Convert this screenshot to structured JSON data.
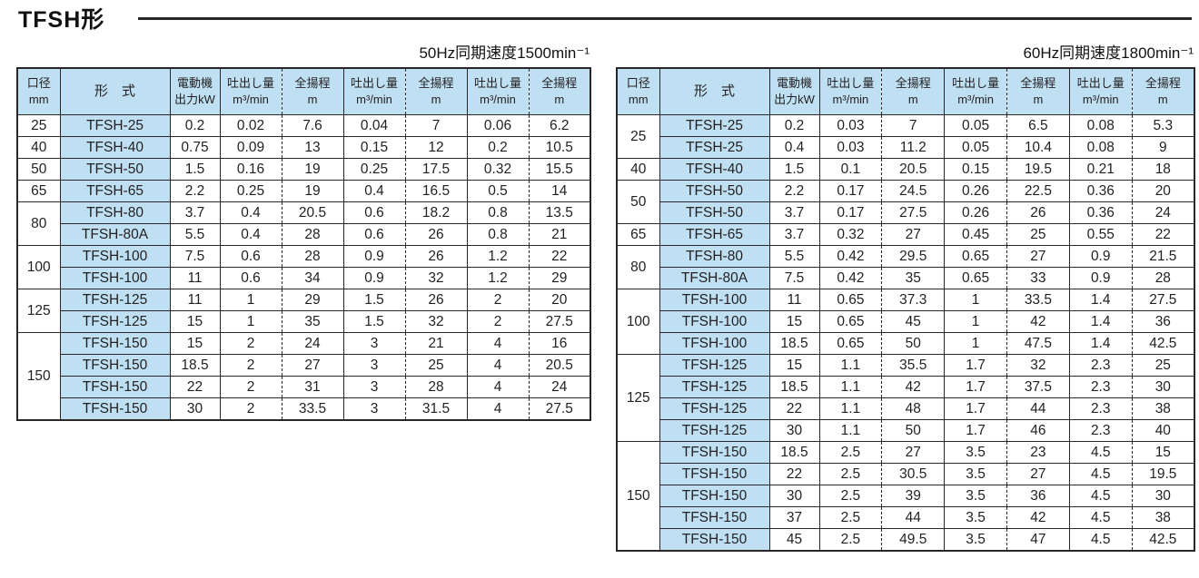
{
  "page": {
    "title": "TFSH形"
  },
  "colors": {
    "header_bg": "#bfdff2",
    "model_cell_bg": "#bfdff2",
    "border": "#2a2627",
    "text": "#231f20"
  },
  "header": {
    "bore": [
      "口径",
      "mm"
    ],
    "model": "形　式",
    "motor": [
      "電動機",
      "出力kW"
    ],
    "flow": [
      "吐出し量",
      "m³/min"
    ],
    "head": [
      "全揚程",
      "m"
    ]
  },
  "tables": [
    {
      "caption": "50Hz同期速度1500min⁻¹",
      "groups": [
        {
          "bore": "25",
          "rows": [
            [
              "TFSH-25",
              "0.2",
              "0.02",
              "7.6",
              "0.04",
              "7",
              "0.06",
              "6.2"
            ]
          ]
        },
        {
          "bore": "40",
          "rows": [
            [
              "TFSH-40",
              "0.75",
              "0.09",
              "13",
              "0.15",
              "12",
              "0.2",
              "10.5"
            ]
          ]
        },
        {
          "bore": "50",
          "rows": [
            [
              "TFSH-50",
              "1.5",
              "0.16",
              "19",
              "0.25",
              "17.5",
              "0.32",
              "15.5"
            ]
          ]
        },
        {
          "bore": "65",
          "rows": [
            [
              "TFSH-65",
              "2.2",
              "0.25",
              "19",
              "0.4",
              "16.5",
              "0.5",
              "14"
            ]
          ]
        },
        {
          "bore": "80",
          "rows": [
            [
              "TFSH-80",
              "3.7",
              "0.4",
              "20.5",
              "0.6",
              "18.2",
              "0.8",
              "13.5"
            ],
            [
              "TFSH-80A",
              "5.5",
              "0.4",
              "28",
              "0.6",
              "26",
              "0.8",
              "21"
            ]
          ]
        },
        {
          "bore": "100",
          "rows": [
            [
              "TFSH-100",
              "7.5",
              "0.6",
              "28",
              "0.9",
              "26",
              "1.2",
              "22"
            ],
            [
              "TFSH-100",
              "11",
              "0.6",
              "34",
              "0.9",
              "32",
              "1.2",
              "29"
            ]
          ]
        },
        {
          "bore": "125",
          "rows": [
            [
              "TFSH-125",
              "11",
              "1",
              "29",
              "1.5",
              "26",
              "2",
              "20"
            ],
            [
              "TFSH-125",
              "15",
              "1",
              "35",
              "1.5",
              "32",
              "2",
              "27.5"
            ]
          ]
        },
        {
          "bore": "150",
          "rows": [
            [
              "TFSH-150",
              "15",
              "2",
              "24",
              "3",
              "21",
              "4",
              "16"
            ],
            [
              "TFSH-150",
              "18.5",
              "2",
              "27",
              "3",
              "25",
              "4",
              "20.5"
            ],
            [
              "TFSH-150",
              "22",
              "2",
              "31",
              "3",
              "28",
              "4",
              "24"
            ],
            [
              "TFSH-150",
              "30",
              "2",
              "33.5",
              "3",
              "31.5",
              "4",
              "27.5"
            ]
          ]
        }
      ]
    },
    {
      "caption": "60Hz同期速度1800min⁻¹",
      "groups": [
        {
          "bore": "25",
          "rows": [
            [
              "TFSH-25",
              "0.2",
              "0.03",
              "7",
              "0.05",
              "6.5",
              "0.08",
              "5.3"
            ],
            [
              "TFSH-25",
              "0.4",
              "0.03",
              "11.2",
              "0.05",
              "10.4",
              "0.08",
              "9"
            ]
          ]
        },
        {
          "bore": "40",
          "rows": [
            [
              "TFSH-40",
              "1.5",
              "0.1",
              "20.5",
              "0.15",
              "19.5",
              "0.21",
              "18"
            ]
          ]
        },
        {
          "bore": "50",
          "rows": [
            [
              "TFSH-50",
              "2.2",
              "0.17",
              "24.5",
              "0.26",
              "22.5",
              "0.36",
              "20"
            ],
            [
              "TFSH-50",
              "3.7",
              "0.17",
              "27.5",
              "0.26",
              "26",
              "0.36",
              "24"
            ]
          ]
        },
        {
          "bore": "65",
          "rows": [
            [
              "TFSH-65",
              "3.7",
              "0.32",
              "27",
              "0.45",
              "25",
              "0.55",
              "22"
            ]
          ]
        },
        {
          "bore": "80",
          "rows": [
            [
              "TFSH-80",
              "5.5",
              "0.42",
              "29.5",
              "0.65",
              "27",
              "0.9",
              "21.5"
            ],
            [
              "TFSH-80A",
              "7.5",
              "0.42",
              "35",
              "0.65",
              "33",
              "0.9",
              "28"
            ]
          ]
        },
        {
          "bore": "100",
          "rows": [
            [
              "TFSH-100",
              "11",
              "0.65",
              "37.3",
              "1",
              "33.5",
              "1.4",
              "27.5"
            ],
            [
              "TFSH-100",
              "15",
              "0.65",
              "45",
              "1",
              "42",
              "1.4",
              "36"
            ],
            [
              "TFSH-100",
              "18.5",
              "0.65",
              "50",
              "1",
              "47.5",
              "1.4",
              "42.5"
            ]
          ]
        },
        {
          "bore": "125",
          "rows": [
            [
              "TFSH-125",
              "15",
              "1.1",
              "35.5",
              "1.7",
              "32",
              "2.3",
              "25"
            ],
            [
              "TFSH-125",
              "18.5",
              "1.1",
              "42",
              "1.7",
              "37.5",
              "2.3",
              "30"
            ],
            [
              "TFSH-125",
              "22",
              "1.1",
              "48",
              "1.7",
              "44",
              "2.3",
              "38"
            ],
            [
              "TFSH-125",
              "30",
              "1.1",
              "50",
              "1.7",
              "46",
              "2.3",
              "40"
            ]
          ]
        },
        {
          "bore": "150",
          "rows": [
            [
              "TFSH-150",
              "18.5",
              "2.5",
              "27",
              "3.5",
              "23",
              "4.5",
              "15"
            ],
            [
              "TFSH-150",
              "22",
              "2.5",
              "30.5",
              "3.5",
              "27",
              "4.5",
              "19.5"
            ],
            [
              "TFSH-150",
              "30",
              "2.5",
              "39",
              "3.5",
              "36",
              "4.5",
              "30"
            ],
            [
              "TFSH-150",
              "37",
              "2.5",
              "44",
              "3.5",
              "42",
              "4.5",
              "38"
            ],
            [
              "TFSH-150",
              "45",
              "2.5",
              "49.5",
              "3.5",
              "47",
              "4.5",
              "42.5"
            ]
          ]
        }
      ]
    }
  ]
}
